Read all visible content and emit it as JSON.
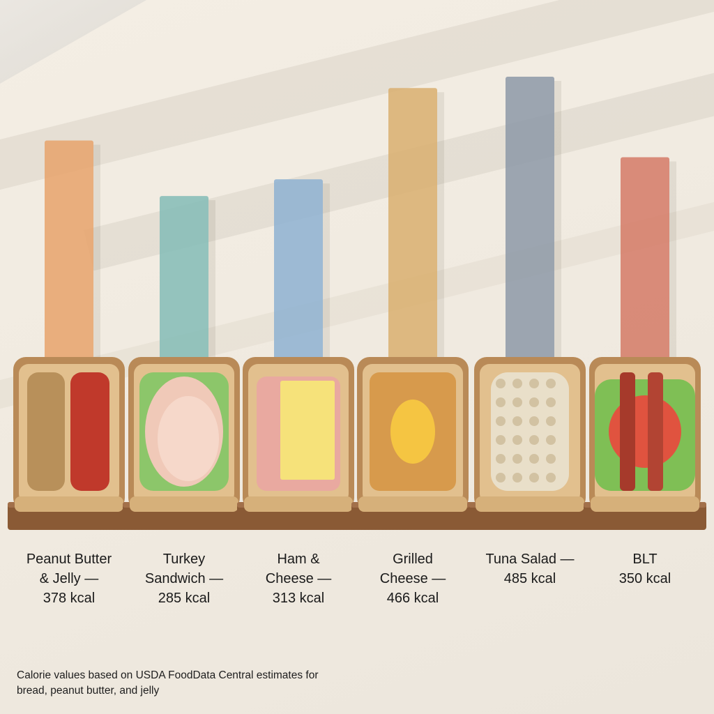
{
  "chart_data": {
    "type": "bar",
    "title": "",
    "xlabel": "",
    "ylabel": "",
    "categories": [
      "Peanut Butter & Jelly",
      "Turkey Sandwich",
      "Ham & Cheese",
      "Grilled Cheese",
      "Tuna Salad",
      "BLT"
    ],
    "values": [
      378,
      285,
      313,
      466,
      485,
      350
    ],
    "units": "kcal",
    "colors": [
      "#e7a56e",
      "#86bdb7",
      "#91b3d2",
      "#d9b072",
      "#8f9ba8",
      "#d57d6a"
    ],
    "bar_labels": [
      "Peanut Butter\n& Jelly —\n378 kcal",
      "Turkey\nSandwich —\n285 kcal",
      "Ham &\nCheese —\n313 kcal",
      "Grilled\nCheese —\n466 kcal",
      "Tuna Salad —\n485 kcal",
      "BLT\n350 kcal"
    ],
    "ylim": [
      0,
      485
    ],
    "grid": false,
    "legend": "none"
  },
  "footnote": "Calorie values based on USDA FoodData Central estimates for bread, peanut butter, and jelly",
  "sandwich_icons": [
    "peanut-butter-jelly-icon",
    "turkey-sandwich-icon",
    "ham-cheese-icon",
    "grilled-cheese-icon",
    "tuna-salad-icon",
    "blt-icon"
  ]
}
